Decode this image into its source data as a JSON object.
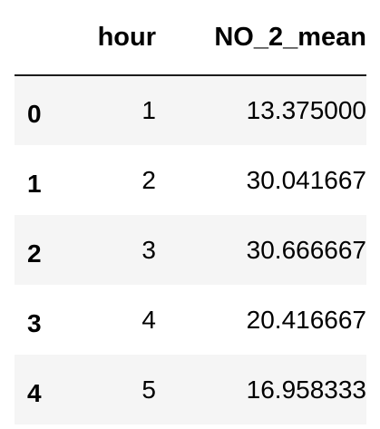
{
  "table": {
    "index_header": "",
    "columns": [
      "hour",
      "NO_2_mean"
    ],
    "rows": [
      {
        "index": "0",
        "hour": "1",
        "NO_2_mean": "13.375000"
      },
      {
        "index": "1",
        "hour": "2",
        "NO_2_mean": "30.041667"
      },
      {
        "index": "2",
        "hour": "3",
        "NO_2_mean": "30.666667"
      },
      {
        "index": "3",
        "hour": "4",
        "NO_2_mean": "20.416667"
      },
      {
        "index": "4",
        "hour": "5",
        "NO_2_mean": "16.958333"
      }
    ],
    "colors": {
      "striped_row": "#f5f5f5",
      "plain_row": "#ffffff",
      "header_rule": "#1c1c1c",
      "text": "#000000"
    }
  }
}
